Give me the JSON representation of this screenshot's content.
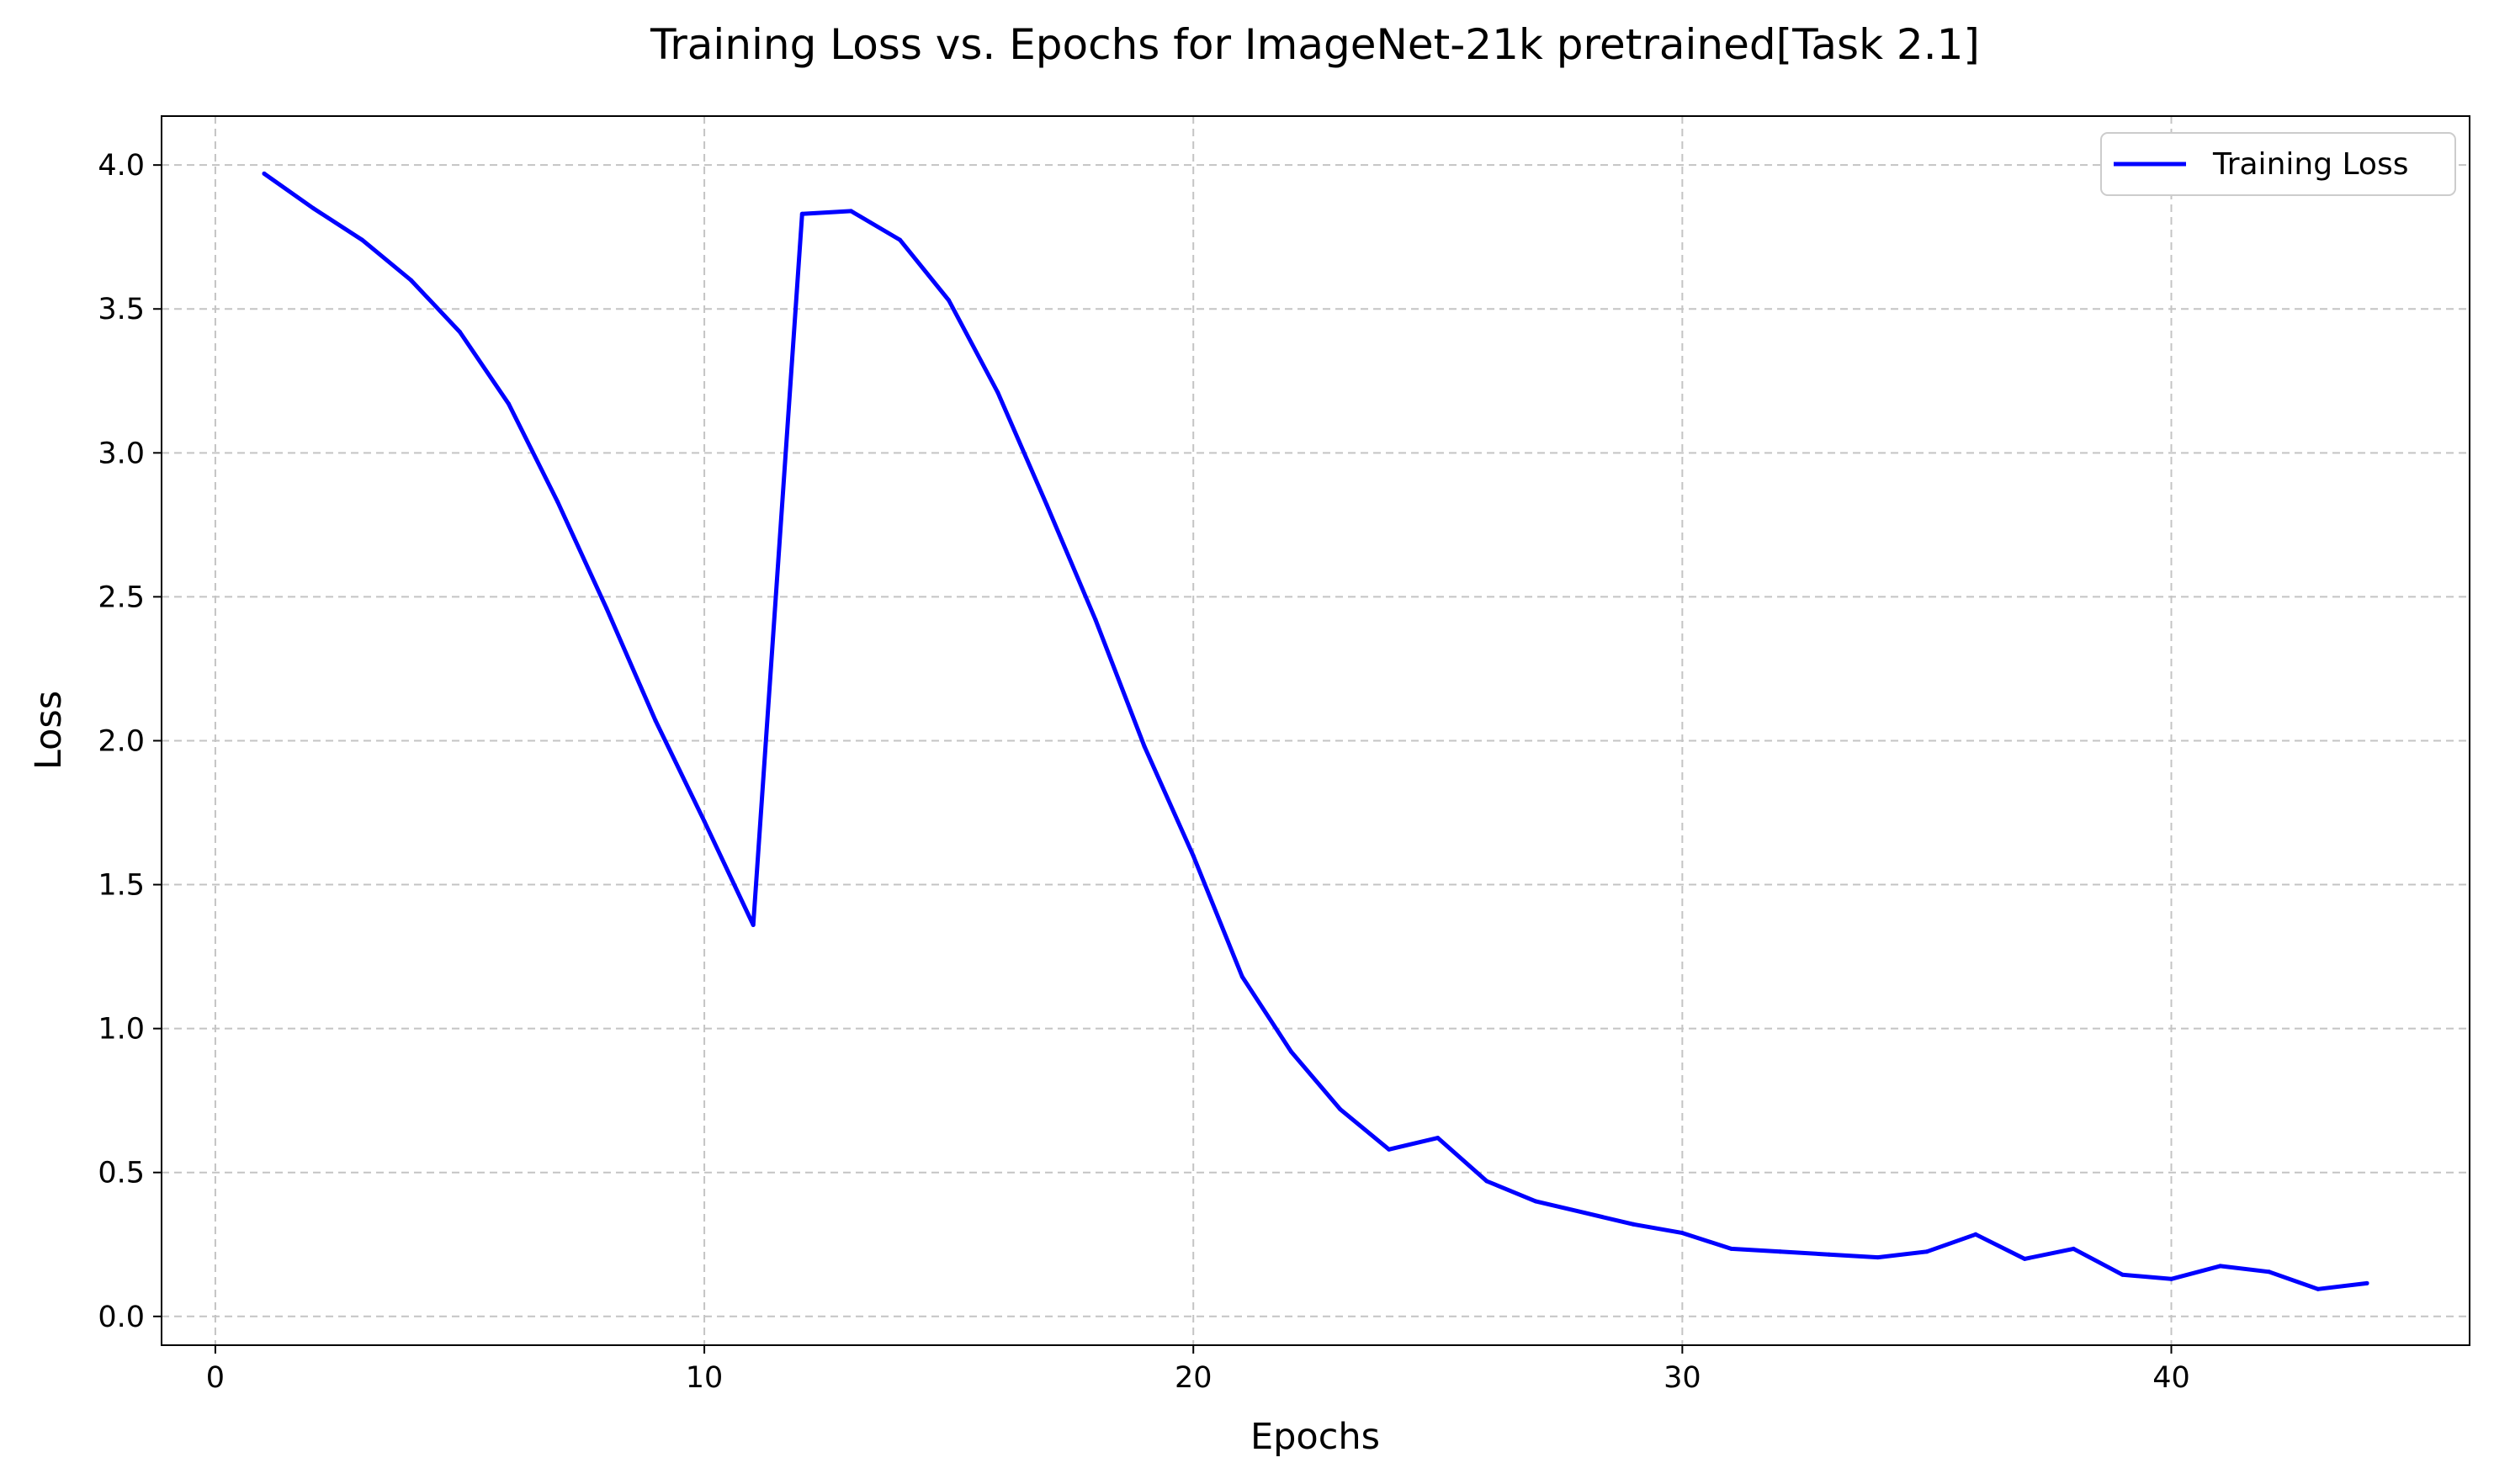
{
  "chart_data": {
    "type": "line",
    "title": "Training Loss vs. Epochs for ImageNet-21k pretrained[Task 2.1]",
    "xlabel": "Epochs",
    "ylabel": "Loss",
    "xlim": [
      -1.1,
      46.1
    ],
    "ylim": [
      -0.1,
      4.17
    ],
    "xticks": [
      0,
      10,
      20,
      30,
      40
    ],
    "xtick_labels": [
      "0",
      "10",
      "20",
      "30",
      "40"
    ],
    "yticks": [
      0.0,
      0.5,
      1.0,
      1.5,
      2.0,
      2.5,
      3.0,
      3.5,
      4.0
    ],
    "ytick_labels": [
      "0.0",
      "0.5",
      "1.0",
      "1.5",
      "2.0",
      "2.5",
      "3.0",
      "3.5",
      "4.0"
    ],
    "grid": true,
    "legend_position": "top-right",
    "series": [
      {
        "name": "Training Loss",
        "color": "#0000ff",
        "x": [
          1,
          2,
          3,
          4,
          5,
          6,
          7,
          8,
          9,
          10,
          11,
          12,
          13,
          14,
          15,
          16,
          17,
          18,
          19,
          20,
          21,
          22,
          23,
          24,
          25,
          26,
          27,
          28,
          29,
          30,
          31,
          32,
          33,
          34,
          35,
          36,
          37,
          38,
          39,
          40,
          41,
          42,
          43,
          44
        ],
        "y": [
          3.97,
          3.85,
          3.74,
          3.6,
          3.42,
          3.17,
          2.83,
          2.46,
          2.07,
          1.72,
          1.36,
          3.83,
          3.84,
          3.74,
          3.53,
          3.21,
          2.82,
          2.42,
          1.98,
          1.6,
          1.18,
          0.92,
          0.72,
          0.58,
          0.62,
          0.47,
          0.4,
          0.36,
          0.32,
          0.29,
          0.235,
          0.225,
          0.215,
          0.205,
          0.225,
          0.285,
          0.2,
          0.235,
          0.145,
          0.13,
          0.175,
          0.155,
          0.095,
          0.115
        ]
      }
    ]
  }
}
